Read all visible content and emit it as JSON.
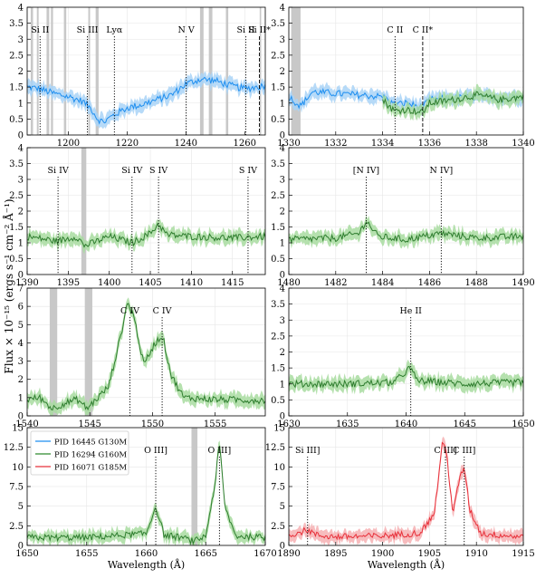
{
  "figure": {
    "ylabel": "Flux × 10⁻¹⁵ (ergs s⁻¹ cm⁻² Å⁻¹)",
    "xlabel": "Wavelength (Å)"
  },
  "legend": {
    "placement": "upper-left of bottom-left panel",
    "entries": [
      {
        "label": "PID 16445 G130M",
        "color": "#1f8ff0"
      },
      {
        "label": "PID 16294 G160M",
        "color": "#2e8b2e"
      },
      {
        "label": "PID 16071 G185M",
        "color": "#e8303a"
      }
    ]
  },
  "colors": {
    "g130m": "#1f8ff0",
    "g130m_band": "#a9d3f7",
    "g160m": "#2e7d2e",
    "g160m_band": "#a8dca0",
    "g185m": "#e8303a",
    "g185m_band": "#f6b0b3",
    "mask": "#c8c8c8"
  },
  "chart_data": [
    {
      "type": "line",
      "xlim": [
        1186,
        1267
      ],
      "ylim": [
        0,
        4
      ],
      "xticks": [
        1200,
        1220,
        1240,
        1260
      ],
      "yticks": [
        0,
        0.5,
        1,
        1.5,
        2,
        2.5,
        3,
        3.5,
        4
      ],
      "xlabel": "",
      "grid": true,
      "masks": [
        [
          1187.2,
          1188
        ],
        [
          1189.3,
          1189.9
        ],
        [
          1192.6,
          1193.5
        ],
        [
          1194.1,
          1194.8
        ],
        [
          1198.5,
          1199.3
        ],
        [
          1206.8,
          1207.4
        ],
        [
          1209.3,
          1210.3
        ],
        [
          1244.8,
          1246
        ],
        [
          1247.8,
          1249
        ],
        [
          1253.6,
          1254.4
        ],
        [
          1265.1,
          1265.6
        ]
      ],
      "lines": [
        {
          "x": 1190.4,
          "label": "Si II",
          "style": "dotted"
        },
        {
          "x": 1206.5,
          "label": "Si III",
          "style": "dotted"
        },
        {
          "x": 1215.67,
          "label": "Lyα",
          "style": "dotted"
        },
        {
          "x": 1240.1,
          "label": "N V",
          "style": "dotted"
        },
        {
          "x": 1260.4,
          "label": "Si II",
          "style": "dotted"
        },
        {
          "x": 1265.0,
          "label": "Si II*",
          "style": "dashed"
        }
      ],
      "series": [
        {
          "instrument": "g130m",
          "points": [
            [
              1186,
              1.5
            ],
            [
              1190,
              1.45
            ],
            [
              1195,
              1.3
            ],
            [
              1200,
              1.2
            ],
            [
              1205,
              1.05
            ],
            [
              1208,
              0.8
            ],
            [
              1210,
              0.5
            ],
            [
              1212,
              0.4
            ],
            [
              1215,
              0.6
            ],
            [
              1220,
              0.85
            ],
            [
              1225,
              0.95
            ],
            [
              1230,
              1.1
            ],
            [
              1235,
              1.25
            ],
            [
              1240,
              1.6
            ],
            [
              1245,
              1.75
            ],
            [
              1250,
              1.7
            ],
            [
              1255,
              1.55
            ],
            [
              1260,
              1.45
            ],
            [
              1264,
              1.5
            ],
            [
              1267,
              1.55
            ]
          ]
        }
      ]
    },
    {
      "type": "line",
      "xlim": [
        1330,
        1340
      ],
      "ylim": [
        0,
        4
      ],
      "xticks": [
        1330,
        1332,
        1334,
        1336,
        1338,
        1340
      ],
      "yticks": [
        0,
        0.5,
        1,
        1.5,
        2,
        2.5,
        3,
        3.5,
        4
      ],
      "xlabel": "",
      "grid": true,
      "masks": [
        [
          1330.1,
          1330.5
        ]
      ],
      "lines": [
        {
          "x": 1334.53,
          "label": "C II",
          "style": "dotted"
        },
        {
          "x": 1335.71,
          "label": "C II*",
          "style": "dashed"
        }
      ],
      "series": [
        {
          "instrument": "g130m",
          "points": [
            [
              1330,
              1.2
            ],
            [
              1330.5,
              0.9
            ],
            [
              1331,
              1.35
            ],
            [
              1332,
              1.3
            ],
            [
              1333,
              1.25
            ],
            [
              1334,
              1.2
            ],
            [
              1334.5,
              0.95
            ],
            [
              1335,
              1.0
            ],
            [
              1335.7,
              0.85
            ],
            [
              1336,
              1.1
            ],
            [
              1337,
              1.15
            ],
            [
              1338,
              1.2
            ],
            [
              1339,
              1.15
            ],
            [
              1340,
              1.2
            ]
          ]
        },
        {
          "instrument": "g160m",
          "points": [
            [
              1334,
              1.1
            ],
            [
              1334.5,
              0.75
            ],
            [
              1335,
              0.8
            ],
            [
              1335.7,
              0.7
            ],
            [
              1336,
              1.0
            ],
            [
              1337,
              1.1
            ],
            [
              1338,
              1.25
            ],
            [
              1339,
              1.1
            ],
            [
              1340,
              1.2
            ]
          ]
        }
      ]
    },
    {
      "type": "line",
      "xlim": [
        1390,
        1419
      ],
      "ylim": [
        0,
        4
      ],
      "xticks": [
        1390,
        1395,
        1400,
        1405,
        1410,
        1415
      ],
      "yticks": [
        0,
        0.5,
        1,
        1.5,
        2,
        2.5,
        3,
        3.5,
        4
      ],
      "xlabel": "",
      "grid": true,
      "masks": [
        [
          1396.6,
          1397.2
        ]
      ],
      "lines": [
        {
          "x": 1393.76,
          "label": "Si IV",
          "style": "dotted"
        },
        {
          "x": 1402.77,
          "label": "Si IV",
          "style": "dotted"
        },
        {
          "x": 1406.0,
          "label": "S IV",
          "style": "dotted"
        },
        {
          "x": 1416.9,
          "label": "S IV",
          "style": "dotted"
        }
      ],
      "series": [
        {
          "instrument": "g160m",
          "points": [
            [
              1390,
              1.2
            ],
            [
              1393.7,
              1.05
            ],
            [
              1396,
              1.2
            ],
            [
              1397,
              0.9
            ],
            [
              1400,
              1.2
            ],
            [
              1402.8,
              1.0
            ],
            [
              1405,
              1.3
            ],
            [
              1406,
              1.6
            ],
            [
              1407,
              1.25
            ],
            [
              1410,
              1.2
            ],
            [
              1415,
              1.15
            ],
            [
              1419,
              1.2
            ]
          ]
        }
      ]
    },
    {
      "type": "line",
      "xlim": [
        1480,
        1490
      ],
      "ylim": [
        0,
        4
      ],
      "xticks": [
        1480,
        1482,
        1484,
        1486,
        1488,
        1490
      ],
      "yticks": [
        0,
        0.5,
        1,
        1.5,
        2,
        2.5,
        3,
        3.5,
        4
      ],
      "xlabel": "",
      "grid": true,
      "masks": [],
      "lines": [
        {
          "x": 1483.3,
          "label": "[N IV]",
          "style": "dotted"
        },
        {
          "x": 1486.5,
          "label": "N IV]",
          "style": "dotted"
        }
      ],
      "series": [
        {
          "instrument": "g160m",
          "points": [
            [
              1480,
              1.1
            ],
            [
              1482,
              1.15
            ],
            [
              1483,
              1.3
            ],
            [
              1483.3,
              1.7
            ],
            [
              1483.8,
              1.2
            ],
            [
              1485,
              1.1
            ],
            [
              1486.5,
              1.3
            ],
            [
              1488,
              1.15
            ],
            [
              1490,
              1.2
            ]
          ]
        }
      ]
    },
    {
      "type": "line",
      "xlim": [
        1540,
        1559
      ],
      "ylim": [
        0,
        7
      ],
      "xticks": [
        1540,
        1545,
        1550,
        1555
      ],
      "yticks": [
        0,
        1,
        2,
        3,
        4,
        5,
        6,
        7
      ],
      "xlabel": "",
      "grid": true,
      "masks": [
        [
          1541.8,
          1542.4
        ],
        [
          1544.6,
          1545.2
        ]
      ],
      "lines": [
        {
          "x": 1548.2,
          "label": "C IV",
          "style": "dotted"
        },
        {
          "x": 1550.77,
          "label": "C IV",
          "style": "dotted"
        }
      ],
      "series": [
        {
          "instrument": "g160m",
          "points": [
            [
              1540,
              0.9
            ],
            [
              1541,
              1.0
            ],
            [
              1542,
              0.4
            ],
            [
              1543,
              0.7
            ],
            [
              1544,
              0.9
            ],
            [
              1544.8,
              0.4
            ],
            [
              1545.5,
              0.9
            ],
            [
              1546.5,
              1.6
            ],
            [
              1547.5,
              4.5
            ],
            [
              1548,
              6.2
            ],
            [
              1548.5,
              5.5
            ],
            [
              1549.3,
              2.8
            ],
            [
              1550.2,
              4.0
            ],
            [
              1550.8,
              4.4
            ],
            [
              1551.5,
              2.2
            ],
            [
              1552.5,
              1.0
            ],
            [
              1555,
              0.9
            ],
            [
              1559,
              0.85
            ]
          ]
        }
      ]
    },
    {
      "type": "line",
      "xlim": [
        1630,
        1650
      ],
      "ylim": [
        0,
        4
      ],
      "xticks": [
        1630,
        1635,
        1640,
        1645,
        1650
      ],
      "yticks": [
        0,
        0.5,
        1,
        1.5,
        2,
        2.5,
        3,
        3.5,
        4
      ],
      "xlabel": "",
      "grid": true,
      "masks": [],
      "lines": [
        {
          "x": 1640.4,
          "label": "He II",
          "style": "dotted"
        }
      ],
      "series": [
        {
          "instrument": "g160m",
          "points": [
            [
              1630,
              1.0
            ],
            [
              1635,
              1.0
            ],
            [
              1639,
              1.05
            ],
            [
              1640.3,
              1.5
            ],
            [
              1641,
              1.1
            ],
            [
              1645,
              1.0
            ],
            [
              1650,
              1.05
            ]
          ]
        }
      ]
    },
    {
      "type": "line",
      "xlim": [
        1650,
        1670
      ],
      "ylim": [
        0,
        15
      ],
      "xticks": [
        1650,
        1655,
        1660,
        1665,
        1670
      ],
      "yticks": [
        0,
        2.5,
        5,
        7.5,
        10,
        12.5,
        15
      ],
      "xlabel": "Wavelength (Å)",
      "grid": true,
      "masks": [
        [
          1663.8,
          1664.3
        ]
      ],
      "lines": [
        {
          "x": 1660.8,
          "label": "O III]",
          "style": "dotted"
        },
        {
          "x": 1666.15,
          "label": "O III]",
          "style": "dotted"
        }
      ],
      "series": [
        {
          "instrument": "g160m",
          "points": [
            [
              1650,
              1.0
            ],
            [
              1655,
              1.0
            ],
            [
              1660,
              1.5
            ],
            [
              1660.8,
              5.0
            ],
            [
              1661.5,
              1.3
            ],
            [
              1663,
              1.0
            ],
            [
              1664,
              0.5
            ],
            [
              1665,
              1.2
            ],
            [
              1665.8,
              8.0
            ],
            [
              1666.15,
              13.2
            ],
            [
              1666.6,
              5.0
            ],
            [
              1667.5,
              1.2
            ],
            [
              1670,
              1.0
            ]
          ]
        }
      ]
    },
    {
      "type": "line",
      "xlim": [
        1890,
        1915
      ],
      "ylim": [
        0,
        15
      ],
      "xticks": [
        1890,
        1895,
        1900,
        1905,
        1910,
        1915
      ],
      "yticks": [
        0,
        2.5,
        5,
        7.5,
        10,
        12.5,
        15
      ],
      "xlabel": "Wavelength (Å)",
      "grid": true,
      "masks": [],
      "lines": [
        {
          "x": 1892.0,
          "label": "Si III]",
          "style": "dotted"
        },
        {
          "x": 1906.7,
          "label": "C III]",
          "style": "dotted"
        },
        {
          "x": 1908.7,
          "label": "C III]",
          "style": "dotted"
        }
      ],
      "series": [
        {
          "instrument": "g185m",
          "points": [
            [
              1890,
              1.3
            ],
            [
              1891.5,
              1.8
            ],
            [
              1892,
              2.0
            ],
            [
              1893,
              1.3
            ],
            [
              1895,
              1.1
            ],
            [
              1900,
              1.2
            ],
            [
              1904,
              1.6
            ],
            [
              1905.5,
              4.0
            ],
            [
              1906.4,
              13.2
            ],
            [
              1906.8,
              12.0
            ],
            [
              1907.5,
              4.0
            ],
            [
              1908.2,
              8.5
            ],
            [
              1908.7,
              10.0
            ],
            [
              1909.3,
              4.5
            ],
            [
              1910.5,
              1.5
            ],
            [
              1915,
              1.1
            ]
          ]
        }
      ]
    }
  ]
}
